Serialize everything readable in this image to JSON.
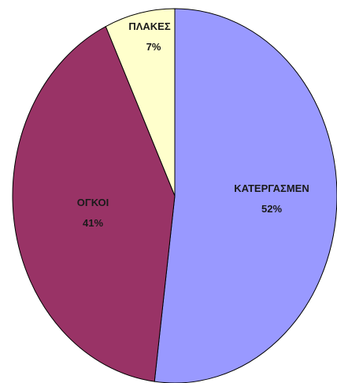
{
  "chart_data": {
    "type": "pie",
    "categories": [
      "ΚΑΤΕΡΓΑΣΜΕΝ",
      "ΟΓΚΟΙ",
      "ΠΛΑΚΕΣ"
    ],
    "values": [
      52,
      41,
      7
    ],
    "labels": [
      "ΚΑΤΕΡΓΑΣΜΕΝ",
      "ΟΓΚΟΙ",
      "ΠΛΑΚΕΣ"
    ],
    "percent_labels": [
      "52%",
      "41%",
      "7%"
    ],
    "colors": [
      "#9999ff",
      "#993366",
      "#ffffcc"
    ],
    "start": "12 o'clock",
    "direction": "clockwise",
    "legend": "none"
  }
}
